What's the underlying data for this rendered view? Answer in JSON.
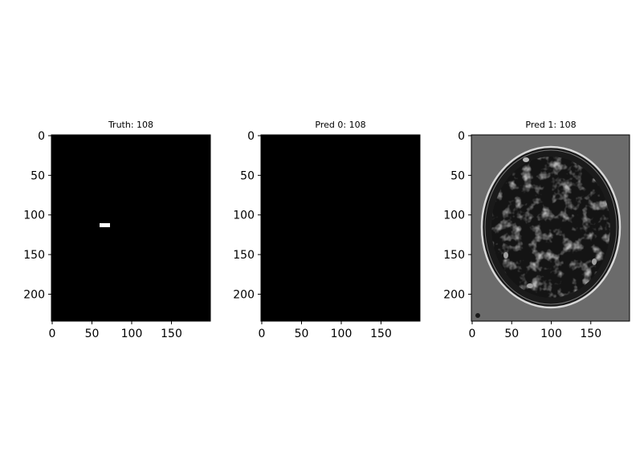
{
  "figure": {
    "background": "#ffffff"
  },
  "chart_data": [
    {
      "type": "heatmap",
      "title": "Truth: 108",
      "xlabel": "",
      "ylabel": "",
      "x_ticks": [
        0,
        50,
        100,
        150
      ],
      "y_ticks": [
        0,
        50,
        100,
        150,
        200
      ],
      "xlim": [
        0,
        200
      ],
      "ylim": [
        235,
        0
      ],
      "image": {
        "size": [
          200,
          235
        ],
        "background": "#000000",
        "description_free_regions": [
          {
            "x": [
              60,
              72
            ],
            "y": [
              110,
              115
            ],
            "value": 1,
            "color": "#ffffff"
          }
        ]
      }
    },
    {
      "type": "heatmap",
      "title": "Pred 0: 108",
      "xlabel": "",
      "ylabel": "",
      "x_ticks": [
        0,
        50,
        100,
        150
      ],
      "y_ticks": [
        0,
        50,
        100,
        150,
        200
      ],
      "xlim": [
        0,
        200
      ],
      "ylim": [
        235,
        0
      ],
      "image": {
        "size": [
          200,
          235
        ],
        "background": "#000000",
        "description_free_regions": []
      }
    },
    {
      "type": "heatmap",
      "title": "Pred 1: 108",
      "xlabel": "",
      "ylabel": "",
      "x_ticks": [
        0,
        50,
        100,
        150
      ],
      "y_ticks": [
        0,
        50,
        100,
        150,
        200
      ],
      "xlim": [
        0,
        200
      ],
      "ylim": [
        235,
        0
      ],
      "image": {
        "size": [
          200,
          235
        ],
        "background": "#6b6b6b",
        "head_outline_color": "#d8d8d8",
        "interior_color": "#1a1a1a",
        "head_center": [
          100,
          106
        ],
        "head_radii": [
          84,
          107
        ]
      }
    }
  ]
}
